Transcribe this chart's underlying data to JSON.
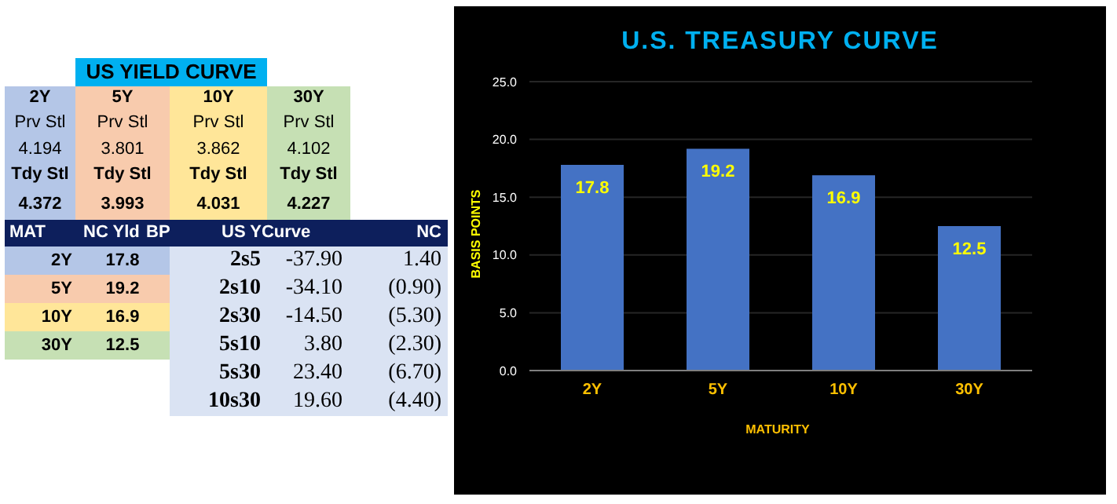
{
  "chart_data": [
    {
      "type": "other",
      "title": "US YIELD CURVE",
      "annotations": [
        "2Y",
        "5Y",
        "10Y",
        "30Y",
        "Prv Stl",
        "Prv Stl",
        "Prv Stl",
        "Prv Stl",
        "4.194",
        "3.801",
        "3.862",
        "4.102",
        "Tdy Stl",
        "Tdy Stl",
        "Tdy Stl",
        "Tdy Stl",
        "4.372",
        "3.993",
        "4.031",
        "4.227",
        "MAT",
        "NC Yld",
        "BP",
        "US YCurve",
        "NC",
        "2Y",
        "17.8",
        "5Y",
        "19.2",
        "10Y",
        "16.9",
        "30Y",
        "12.5",
        "2s5",
        "-37.90",
        "1.40",
        "2s10",
        "-34.10",
        "(0.90)",
        "2s30",
        "-14.50",
        "(5.30)",
        "5s10",
        "3.80",
        "(2.30)",
        "5s30",
        "23.40",
        "(6.70)",
        "10s30",
        "19.60",
        "(4.40)"
      ]
    },
    {
      "type": "bar",
      "title": "U.S. TREASURY CURVE",
      "xlabel": "MATURITY",
      "ylabel": "BASIS POINTS",
      "categories": [
        "2Y",
        "5Y",
        "10Y",
        "30Y"
      ],
      "values": [
        17.8,
        19.2,
        16.9,
        12.5
      ],
      "color": "#4472c4",
      "ylim": [
        0,
        25
      ],
      "yticks": [
        {
          "value": 0,
          "label": "0.0"
        },
        {
          "value": 5,
          "label": "5.0"
        },
        {
          "value": 10,
          "label": "10.0"
        },
        {
          "value": 15,
          "label": "15.0"
        },
        {
          "value": 20,
          "label": "20.0"
        },
        {
          "value": 25,
          "label": "25.0"
        }
      ],
      "grid": "y",
      "data_labels": true
    }
  ]
}
